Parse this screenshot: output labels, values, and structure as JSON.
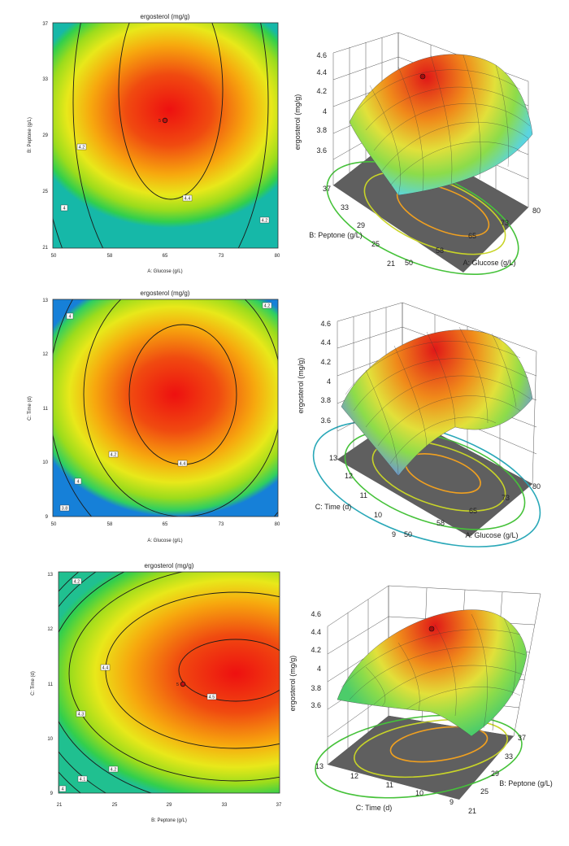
{
  "chart_data": [
    {
      "type": "contour",
      "title": "ergosterol (mg/g)",
      "xlabel": "A: Glucose (g/L)",
      "ylabel": "B: Peptone (g/L)",
      "xticks": [
        "50",
        "58",
        "65",
        "73",
        "80"
      ],
      "yticks": [
        "21",
        "25",
        "29",
        "33",
        "37"
      ],
      "xlim": [
        50,
        80
      ],
      "ylim": [
        21,
        37
      ],
      "contour_levels": [
        "4",
        "4.2",
        "4.4",
        "4.2"
      ],
      "design_point": {
        "label": "5",
        "x": 65,
        "y": 29
      }
    },
    {
      "type": "surface3d",
      "zlabel": "ergosterol (mg/g)",
      "xlabel": "A: Glucose (g/L)",
      "ylabel": "B: Peptone (g/L)",
      "xticks": [
        "50",
        "58",
        "65",
        "73",
        "80"
      ],
      "yticks": [
        "21",
        "25",
        "29",
        "33",
        "37"
      ],
      "zticks": [
        "3.6",
        "3.8",
        "4",
        "4.2",
        "4.4",
        "4.6"
      ],
      "zlim": [
        3.5,
        4.6
      ]
    },
    {
      "type": "contour",
      "title": "ergosterol (mg/g)",
      "xlabel": "A: Glucose (g/L)",
      "ylabel": "C: Time (d)",
      "xticks": [
        "50",
        "58",
        "65",
        "73",
        "80"
      ],
      "yticks": [
        "9",
        "10",
        "11",
        "12",
        "13"
      ],
      "xlim": [
        50,
        80
      ],
      "ylim": [
        9,
        13
      ],
      "contour_levels": [
        "4",
        "4.2",
        "4.4",
        "3.8",
        "4",
        "4.2"
      ]
    },
    {
      "type": "surface3d",
      "zlabel": "ergosterol (mg/g)",
      "xlabel": "A: Glucose (g/L)",
      "ylabel": "C: Time (d)",
      "xticks": [
        "50",
        "58",
        "65",
        "73",
        "80"
      ],
      "yticks": [
        "9",
        "10",
        "11",
        "12",
        "13"
      ],
      "zticks": [
        "3.6",
        "3.8",
        "4",
        "4.2",
        "4.4",
        "4.6"
      ],
      "zlim": [
        3.5,
        4.6
      ]
    },
    {
      "type": "contour",
      "title": "ergosterol (mg/g)",
      "xlabel": "B: Peptone (g/L)",
      "ylabel": "C: Time (d)",
      "xticks": [
        "21",
        "25",
        "29",
        "33",
        "37"
      ],
      "yticks": [
        "9",
        "10",
        "11",
        "12",
        "13"
      ],
      "xlim": [
        21,
        37
      ],
      "ylim": [
        9,
        13
      ],
      "contour_levels": [
        "4.2",
        "4.4",
        "4.5",
        "4.3",
        "4.2",
        "4.1",
        "4"
      ],
      "design_point": {
        "label": "5",
        "x": 29,
        "y": 11
      }
    },
    {
      "type": "surface3d",
      "zlabel": "ergosterol (mg/g)",
      "xlabel": "C: Time (d)",
      "ylabel": "B: Peptone (g/L)",
      "xticks": [
        "13",
        "12",
        "11",
        "10",
        "9"
      ],
      "yticks": [
        "21",
        "25",
        "29",
        "33",
        "37"
      ],
      "zticks": [
        "3.6",
        "3.8",
        "4",
        "4.2",
        "4.4",
        "4.6"
      ],
      "zlim": [
        3.5,
        4.6
      ]
    }
  ]
}
